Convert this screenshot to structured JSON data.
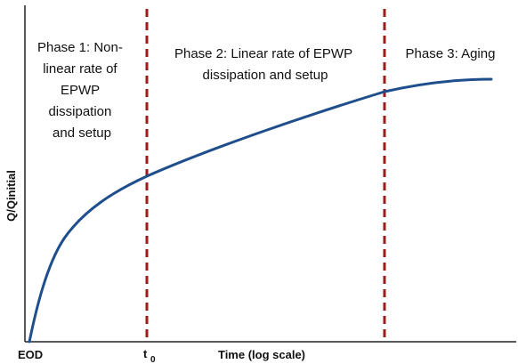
{
  "colors": {
    "curve": "#1f4e8c",
    "divider": "#9e1b1b",
    "axis": "#222222",
    "text": "#111111"
  },
  "phase_labels": {
    "phase1": [
      "Phase 1: Non-",
      "linear rate of",
      "EPWP",
      "dissipation",
      "and setup"
    ],
    "phase2": [
      "Phase 2: Linear rate of EPWP",
      "dissipation and setup"
    ],
    "phase3": [
      "Phase 3: Aging"
    ]
  },
  "axes": {
    "y_label": "Q/Qinitial",
    "x_label": "Time (log scale)",
    "x_start_label": "EOD",
    "t0_main": "t",
    "t0_sub": "0"
  },
  "dividers": {
    "count": 2,
    "style": "dashed"
  }
}
